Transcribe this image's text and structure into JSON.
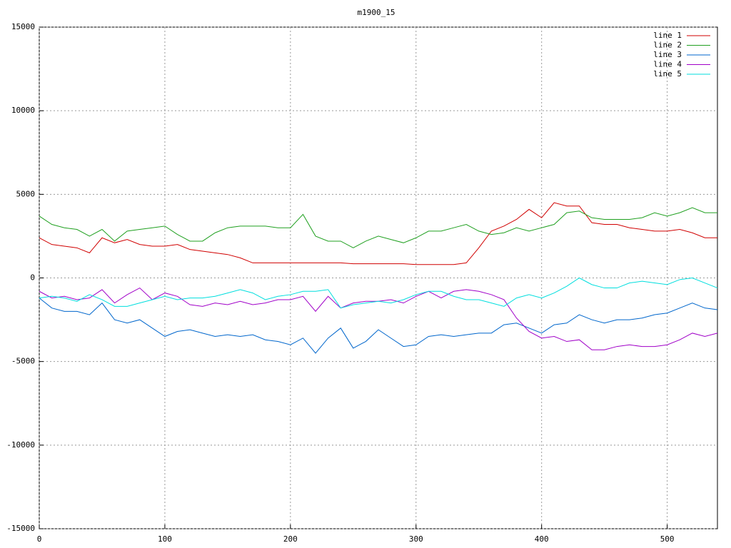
{
  "chart_data": {
    "type": "line",
    "title": "m1900_15",
    "x": [
      0,
      10,
      20,
      30,
      40,
      50,
      60,
      70,
      80,
      90,
      100,
      110,
      120,
      130,
      140,
      150,
      160,
      170,
      180,
      190,
      200,
      210,
      220,
      230,
      240,
      250,
      260,
      270,
      280,
      290,
      300,
      310,
      320,
      330,
      340,
      350,
      360,
      370,
      380,
      390,
      400,
      410,
      420,
      430,
      440,
      450,
      460,
      470,
      480,
      490,
      500,
      510,
      520,
      530,
      540
    ],
    "series": [
      {
        "name": "line 1",
        "color": "#d00000",
        "values": [
          2400,
          2000,
          1900,
          1800,
          1500,
          2400,
          2100,
          2300,
          2000,
          1900,
          1900,
          2000,
          1700,
          1600,
          1500,
          1400,
          1200,
          900,
          900,
          900,
          900,
          900,
          900,
          900,
          900,
          850,
          850,
          850,
          850,
          850,
          800,
          800,
          800,
          800,
          900,
          1800,
          2800,
          3100,
          3500,
          4100,
          3600,
          4500,
          4300,
          4300,
          3300,
          3200,
          3200,
          3000,
          2900,
          2800,
          2800,
          2900,
          2700,
          2400,
          2400
        ]
      },
      {
        "name": "line 2",
        "color": "#20a020",
        "values": [
          3700,
          3200,
          3000,
          2900,
          2500,
          2900,
          2200,
          2800,
          2900,
          3000,
          3100,
          2600,
          2200,
          2200,
          2700,
          3000,
          3100,
          3100,
          3100,
          3000,
          3000,
          3800,
          2500,
          2200,
          2200,
          1800,
          2200,
          2500,
          2300,
          2100,
          2400,
          2800,
          2800,
          3000,
          3200,
          2800,
          2600,
          2700,
          3000,
          2800,
          3000,
          3200,
          3900,
          4000,
          3600,
          3500,
          3500,
          3500,
          3600,
          3900,
          3700,
          3900,
          4200,
          3900,
          3900
        ]
      },
      {
        "name": "line 3",
        "color": "#0066cc",
        "values": [
          -1200,
          -1800,
          -2000,
          -2000,
          -2200,
          -1500,
          -2500,
          -2700,
          -2500,
          -3000,
          -3500,
          -3200,
          -3100,
          -3300,
          -3500,
          -3400,
          -3500,
          -3400,
          -3700,
          -3800,
          -4000,
          -3600,
          -4500,
          -3600,
          -3000,
          -4200,
          -3800,
          -3100,
          -3600,
          -4100,
          -4000,
          -3500,
          -3400,
          -3500,
          -3400,
          -3300,
          -3300,
          -2800,
          -2700,
          -3000,
          -3300,
          -2800,
          -2700,
          -2200,
          -2500,
          -2700,
          -2500,
          -2500,
          -2400,
          -2200,
          -2100,
          -1800,
          -1500,
          -1800,
          -1900
        ]
      },
      {
        "name": "line 4",
        "color": "#a000c8",
        "values": [
          -800,
          -1200,
          -1100,
          -1300,
          -1200,
          -700,
          -1500,
          -1000,
          -600,
          -1300,
          -900,
          -1100,
          -1600,
          -1700,
          -1500,
          -1600,
          -1400,
          -1600,
          -1500,
          -1300,
          -1300,
          -1100,
          -2000,
          -1100,
          -1800,
          -1500,
          -1400,
          -1400,
          -1300,
          -1500,
          -1100,
          -800,
          -1200,
          -800,
          -700,
          -800,
          -1000,
          -1300,
          -2400,
          -3200,
          -3600,
          -3500,
          -3800,
          -3700,
          -4300,
          -4300,
          -4100,
          -4000,
          -4100,
          -4100,
          -4000,
          -3700,
          -3300,
          -3500,
          -3300
        ]
      },
      {
        "name": "line 5",
        "color": "#00dede",
        "values": [
          -1200,
          -1100,
          -1200,
          -1400,
          -1000,
          -1300,
          -1700,
          -1700,
          -1500,
          -1300,
          -1100,
          -1300,
          -1200,
          -1200,
          -1100,
          -900,
          -700,
          -900,
          -1300,
          -1100,
          -1000,
          -800,
          -800,
          -700,
          -1800,
          -1600,
          -1500,
          -1400,
          -1500,
          -1300,
          -1000,
          -800,
          -800,
          -1100,
          -1300,
          -1300,
          -1500,
          -1700,
          -1200,
          -1000,
          -1200,
          -900,
          -500,
          0,
          -400,
          -600,
          -600,
          -300,
          -200,
          -300,
          -400,
          -100,
          0,
          -300,
          -600
        ]
      }
    ],
    "xlim": [
      0,
      540
    ],
    "xticks": [
      0,
      100,
      200,
      300,
      400,
      500
    ],
    "ylim": [
      -15000,
      15000
    ],
    "yticks": [
      -15000,
      -10000,
      -5000,
      0,
      5000,
      10000,
      15000
    ],
    "grid": true,
    "legend": "top-right"
  }
}
